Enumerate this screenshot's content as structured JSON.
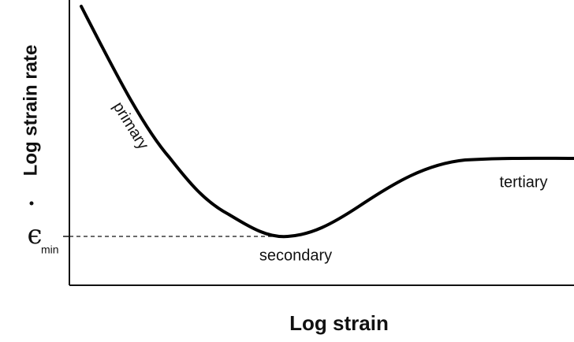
{
  "axes": {
    "x_label": "Log strain",
    "y_label": "Log strain rate"
  },
  "min_label": {
    "symbol": "ϵ",
    "subscript": "min"
  },
  "regions": {
    "primary": "primary",
    "secondary": "secondary",
    "tertiary": "tertiary"
  }
}
